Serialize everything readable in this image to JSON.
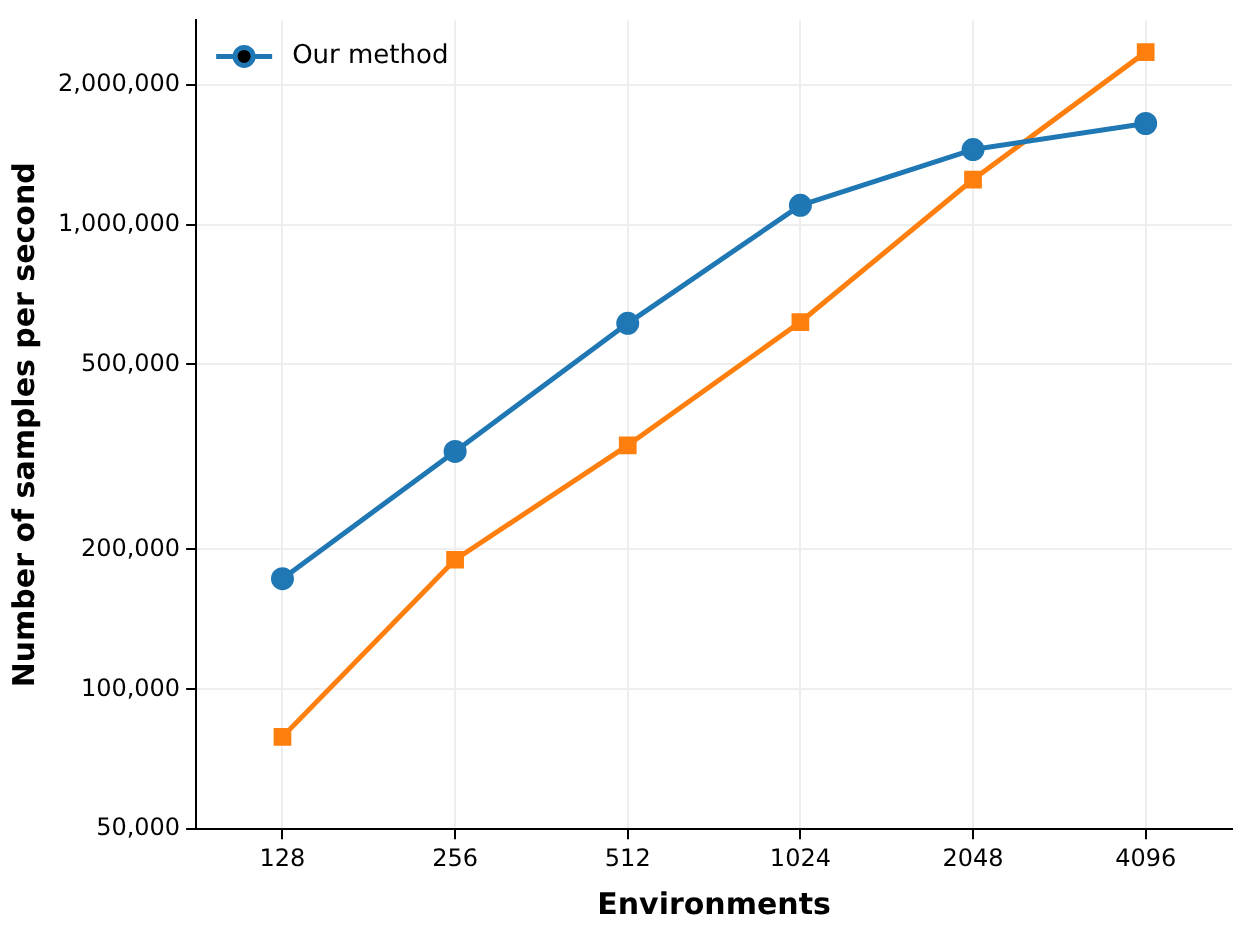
{
  "chart_data": {
    "type": "line",
    "xlabel": "Environments",
    "ylabel": "Number of samples per second",
    "categories": [
      "128",
      "256",
      "512",
      "1024",
      "2048",
      "4096"
    ],
    "series": [
      {
        "name": "Our method",
        "color": "#1f77b4",
        "marker": "circle",
        "values": [
          173000,
          325000,
          613000,
          1100000,
          1450000,
          1650000
        ]
      },
      {
        "color": "#ff7f0e",
        "marker": "square",
        "values": [
          79000,
          190000,
          335000,
          617000,
          1250000,
          2350000
        ]
      }
    ],
    "log": "y",
    "ylim": [
      50000,
      2750000
    ],
    "yticks": [
      {
        "value": 50000,
        "label": "50,000"
      },
      {
        "value": 100000,
        "label": "100,000"
      },
      {
        "value": 200000,
        "label": "200,000"
      },
      {
        "value": 500000,
        "label": "500,000"
      },
      {
        "value": 1000000,
        "label": "1,000,000"
      },
      {
        "value": 2000000,
        "label": "2,000,000"
      }
    ],
    "grid": true,
    "legend": "top left"
  }
}
